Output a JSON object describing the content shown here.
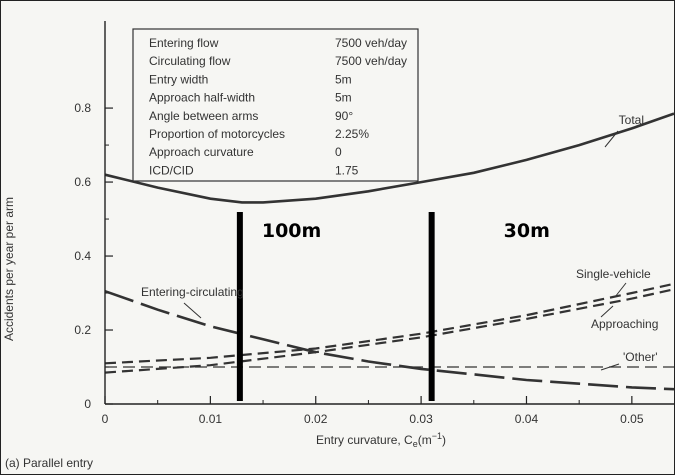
{
  "chart_data": {
    "type": "line",
    "caption": "(a) Parallel entry",
    "xlabel": "Entry curvature, C",
    "xlabel_sub": "e",
    "xlabel_unit": "(m",
    "xlabel_exp": "−1",
    "xlabel_close": ")",
    "ylabel": "Accidents per year per arm",
    "xlim": [
      0,
      0.054
    ],
    "ylim": [
      0,
      1.03
    ],
    "x_ticks": [
      0,
      0.01,
      0.02,
      0.03,
      0.04,
      0.05
    ],
    "x_tick_labels": [
      "0",
      "0.01",
      "0.02",
      "0.03",
      "0.04",
      "0.05"
    ],
    "y_ticks": [
      0,
      0.2,
      0.4,
      0.6,
      0.8
    ],
    "y_tick_labels": [
      "0",
      "0.2",
      "0.4",
      "0.6",
      "0.8"
    ],
    "info_table": [
      {
        "label": "Entering flow",
        "value": "7500 veh/day"
      },
      {
        "label": "Circulating flow",
        "value": "7500 veh/day"
      },
      {
        "label": "Entry width",
        "value": "5m"
      },
      {
        "label": "Approach half-width",
        "value": "5m"
      },
      {
        "label": "Angle between arms",
        "value": "90°"
      },
      {
        "label": "Proportion of motorcycles",
        "value": "2.25%"
      },
      {
        "label": "Approach curvature",
        "value": "0"
      },
      {
        "label": "ICD/CID",
        "value": "1.75"
      }
    ],
    "series": [
      {
        "name": "Total",
        "style": "solid",
        "width": 2.6,
        "x": [
          0,
          0.005,
          0.01,
          0.013,
          0.015,
          0.02,
          0.025,
          0.03,
          0.035,
          0.04,
          0.045,
          0.05,
          0.054
        ],
        "y": [
          0.62,
          0.585,
          0.555,
          0.545,
          0.545,
          0.555,
          0.575,
          0.6,
          0.625,
          0.66,
          0.7,
          0.745,
          0.785
        ]
      },
      {
        "name": "Entering-circulating",
        "style": "longdash",
        "width": 2.6,
        "x": [
          0,
          0.005,
          0.01,
          0.015,
          0.02,
          0.025,
          0.03,
          0.035,
          0.04,
          0.045,
          0.05,
          0.054
        ],
        "y": [
          0.305,
          0.255,
          0.21,
          0.175,
          0.14,
          0.115,
          0.095,
          0.08,
          0.065,
          0.055,
          0.045,
          0.04
        ]
      },
      {
        "name": "Single-vehicle",
        "style": "dash",
        "width": 2.2,
        "x": [
          0,
          0.01,
          0.02,
          0.03,
          0.04,
          0.05,
          0.054
        ],
        "y": [
          0.11,
          0.125,
          0.15,
          0.19,
          0.24,
          0.3,
          0.325
        ]
      },
      {
        "name": "Approaching",
        "style": "dash",
        "width": 2.2,
        "x": [
          0,
          0.01,
          0.02,
          0.03,
          0.04,
          0.05,
          0.054
        ],
        "y": [
          0.085,
          0.105,
          0.14,
          0.18,
          0.23,
          0.285,
          0.31
        ]
      },
      {
        "name": "'Other'",
        "style": "thindash",
        "width": 1.2,
        "x": [
          0,
          0.054
        ],
        "y": [
          0.1,
          0.1
        ]
      }
    ],
    "series_labels": [
      "Total",
      "Entering-circulating",
      "Single-vehicle",
      "Approaching",
      "'Other'"
    ],
    "markers": [
      {
        "x": 0.0128,
        "label": "100m"
      },
      {
        "x": 0.031,
        "label": "30m"
      }
    ]
  }
}
